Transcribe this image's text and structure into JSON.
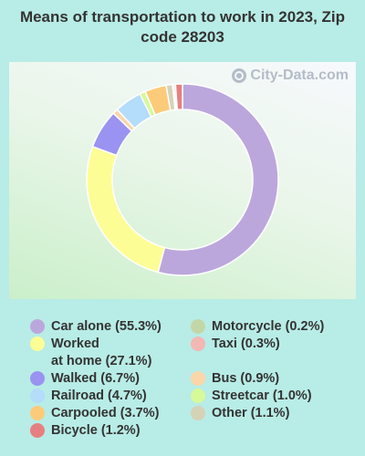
{
  "title": "Means of transportation to work in 2023, Zip code 28203",
  "watermark": "City-Data.com",
  "chart_data": {
    "type": "donut",
    "slices": [
      {
        "label": "Car alone",
        "value": 55.3,
        "color": "#bca7dc"
      },
      {
        "label": "Worked\nat home",
        "value": 27.1,
        "color": "#fdfd96"
      },
      {
        "label": "Walked",
        "value": 6.7,
        "color": "#9a93f2"
      },
      {
        "label": "Bus",
        "value": 0.9,
        "color": "#fbd6a9"
      },
      {
        "label": "Railroad",
        "value": 4.7,
        "color": "#b4dcfb"
      },
      {
        "label": "Streetcar",
        "value": 1.0,
        "color": "#d6f99a"
      },
      {
        "label": "Carpooled",
        "value": 3.7,
        "color": "#fccb7a"
      },
      {
        "label": "Other",
        "value": 1.1,
        "color": "#d6d2b6"
      },
      {
        "label": "Motorcycle",
        "value": 0.2,
        "color": "#c3d7a6"
      },
      {
        "label": "Taxi",
        "value": 0.3,
        "color": "#f3b7b4"
      },
      {
        "label": "Bicycle",
        "value": 1.2,
        "color": "#e68080"
      }
    ]
  },
  "legend": [
    {
      "text": "Car alone (55.3%)",
      "color": "#bca7dc"
    },
    {
      "text": "Worked\nat home (27.1%)",
      "color": "#fdfd96"
    },
    {
      "text": "Walked (6.7%)",
      "color": "#9a93f2"
    },
    {
      "text": "Railroad (4.7%)",
      "color": "#b4dcfb"
    },
    {
      "text": "Carpooled (3.7%)",
      "color": "#fccb7a"
    },
    {
      "text": "Bicycle (1.2%)",
      "color": "#e68080"
    },
    {
      "text": "Motorcycle (0.2%)",
      "color": "#c3d7a6"
    },
    {
      "text": "Taxi (0.3%)",
      "color": "#f3b7b4"
    },
    {
      "text": "Bus (0.9%)",
      "color": "#fbd6a9"
    },
    {
      "text": "Streetcar (1.0%)",
      "color": "#d6f99a"
    },
    {
      "text": "Other (1.1%)",
      "color": "#d6d2b6"
    }
  ]
}
